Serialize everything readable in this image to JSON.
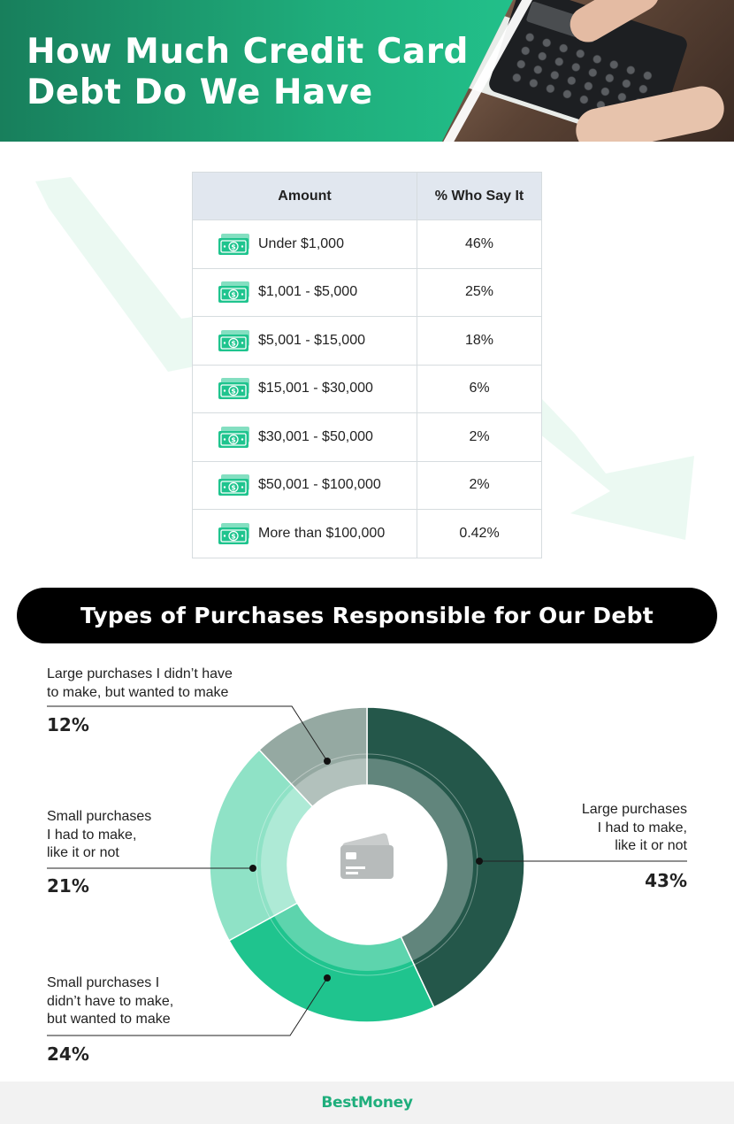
{
  "header": {
    "title": "How Much Credit Card Debt Do We Have"
  },
  "table": {
    "headers": [
      "Amount",
      "% Who Say It"
    ],
    "rows": [
      {
        "amount": "Under $1,000",
        "pct": "46%"
      },
      {
        "amount": "$1,001 - $5,000",
        "pct": "25%"
      },
      {
        "amount": "$5,001 - $15,000",
        "pct": "18%"
      },
      {
        "amount": "$15,001 - $30,000",
        "pct": "6%"
      },
      {
        "amount": "$30,001 - $50,000",
        "pct": "2%"
      },
      {
        "amount": "$50,001 - $100,000",
        "pct": "2%"
      },
      {
        "amount": "More than $100,000",
        "pct": "0.42%"
      }
    ]
  },
  "banner": {
    "title": "Types of Purchases Responsible for Our Debt"
  },
  "chart_data": [
    {
      "type": "table",
      "columns": [
        "Amount",
        "% Who Say It"
      ],
      "rows": [
        [
          "Under $1,000",
          46
        ],
        [
          "$1,001 - $5,000",
          25
        ],
        [
          "$5,001 - $15,000",
          18
        ],
        [
          "$15,001 - $30,000",
          6
        ],
        [
          "$30,001 - $50,000",
          2
        ],
        [
          "$50,001 - $100,000",
          2
        ],
        [
          "More than $100,000",
          0.42
        ]
      ]
    },
    {
      "type": "pie",
      "title": "Types of Purchases Responsible for Our Debt",
      "slices": [
        {
          "label": "Large purchases I had to make, like it or not",
          "value": 43,
          "display": "43%",
          "color": "#24574a"
        },
        {
          "label": "Small purchases I didn't have to make, but wanted to make",
          "value": 24,
          "display": "24%",
          "color": "#1fc48e"
        },
        {
          "label": "Small purchases I had to make, like it or not",
          "value": 21,
          "display": "21%",
          "color": "#8fe2c6"
        },
        {
          "label": "Large purchases I didn't have to make, but wanted to make",
          "value": 12,
          "display": "12%",
          "color": "#95a9a2"
        }
      ],
      "center_icon": "credit-card-icon"
    }
  ],
  "labels": {
    "large_wanted": [
      "Large purchases I didn’t have",
      "to make, but wanted to make"
    ],
    "small_had": [
      "Small purchases",
      "I had to make,",
      "like it or not"
    ],
    "small_wanted": [
      "Small purchases I",
      "didn’t have to make,",
      "but wanted to make"
    ],
    "large_had": [
      "Large purchases",
      "I had to make,",
      "like it or not"
    ]
  },
  "footer": {
    "logo": "BestMoney"
  },
  "icons": {
    "table_row": "money-icon",
    "chart_center": "credit-card-icon"
  }
}
